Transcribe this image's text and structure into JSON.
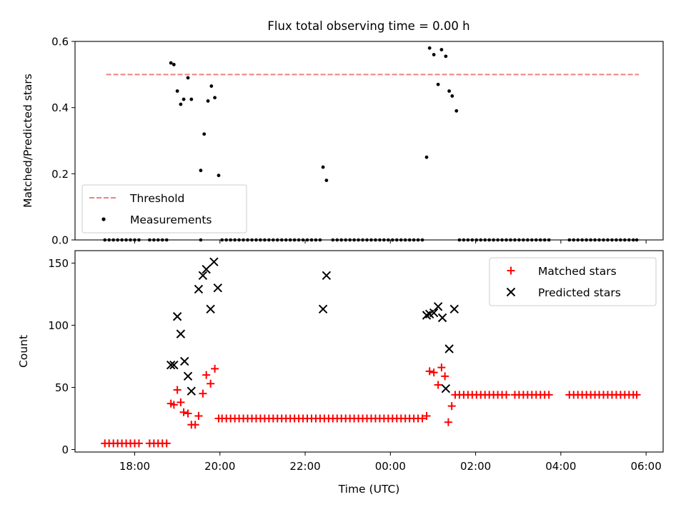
{
  "title": "Flux total observing time = 0.00 h",
  "chart_data": [
    {
      "type": "scatter",
      "ylabel": "Matched/Predicted stars",
      "ylim": [
        0,
        0.6
      ],
      "yticks": [
        "0.0",
        "0.2",
        "0.4",
        "0.6"
      ],
      "xlim": [
        16.6,
        30.4
      ],
      "x_unit": "hours since 00:00 UTC on first day",
      "legend": {
        "placement": "lower-left",
        "entries": [
          "Threshold",
          "Measurements"
        ]
      },
      "threshold": {
        "name": "Threshold",
        "color": "#f08080",
        "style": "dashed",
        "x": [
          17.33,
          29.83
        ],
        "y": 0.5
      },
      "series": [
        {
          "name": "Measurements",
          "color": "#000000",
          "marker": "dot",
          "points": [
            [
              18.85,
              0.535
            ],
            [
              18.92,
              0.53
            ],
            [
              19.0,
              0.45
            ],
            [
              19.08,
              0.41
            ],
            [
              19.15,
              0.425
            ],
            [
              19.25,
              0.49
            ],
            [
              19.33,
              0.425
            ],
            [
              19.55,
              0.21
            ],
            [
              19.63,
              0.32
            ],
            [
              19.72,
              0.42
            ],
            [
              19.8,
              0.465
            ],
            [
              19.88,
              0.43
            ],
            [
              19.97,
              0.195
            ],
            [
              22.42,
              0.22
            ],
            [
              22.5,
              0.18
            ],
            [
              24.85,
              0.25
            ],
            [
              24.92,
              0.58
            ],
            [
              25.02,
              0.56
            ],
            [
              25.12,
              0.47
            ],
            [
              25.2,
              0.575
            ],
            [
              25.3,
              0.555
            ],
            [
              25.38,
              0.45
            ],
            [
              25.45,
              0.435
            ],
            [
              25.55,
              0.39
            ]
          ]
        }
      ],
      "zero_points_x": [
        17.3,
        17.4,
        17.5,
        17.6,
        17.7,
        17.8,
        17.9,
        18.0,
        18.1,
        18.35,
        18.45,
        18.55,
        18.65,
        18.75,
        19.55,
        20.05,
        20.15,
        20.25,
        20.35,
        20.45,
        20.55,
        20.65,
        20.75,
        20.85,
        20.95,
        21.05,
        21.15,
        21.25,
        21.35,
        21.45,
        21.55,
        21.65,
        21.75,
        21.85,
        21.95,
        22.05,
        22.15,
        22.25,
        22.35,
        22.65,
        22.75,
        22.85,
        22.95,
        23.05,
        23.15,
        23.25,
        23.35,
        23.45,
        23.55,
        23.65,
        23.75,
        23.85,
        23.95,
        24.05,
        24.15,
        24.25,
        24.35,
        24.45,
        24.55,
        24.65,
        24.75,
        25.62,
        25.72,
        25.82,
        25.92,
        26.02,
        26.12,
        26.22,
        26.32,
        26.42,
        26.52,
        26.62,
        26.72,
        26.82,
        26.92,
        27.02,
        27.12,
        27.22,
        27.32,
        27.42,
        27.52,
        27.62,
        27.72,
        28.2,
        28.3,
        28.4,
        28.5,
        28.6,
        28.7,
        28.8,
        28.9,
        29.0,
        29.1,
        29.2,
        29.3,
        29.4,
        29.5,
        29.6,
        29.7,
        29.78
      ]
    },
    {
      "type": "scatter",
      "ylabel": "Count",
      "xlabel": "Time (UTC)",
      "ylim": [
        -2,
        160
      ],
      "yticks": [
        "0",
        "50",
        "100",
        "150"
      ],
      "xlim": [
        16.6,
        30.4
      ],
      "xticks": [
        {
          "value": 18,
          "label": "18:00"
        },
        {
          "value": 20,
          "label": "20:00"
        },
        {
          "value": 22,
          "label": "22:00"
        },
        {
          "value": 24,
          "label": "00:00"
        },
        {
          "value": 26,
          "label": "02:00"
        },
        {
          "value": 28,
          "label": "04:00"
        },
        {
          "value": 30,
          "label": "06:00"
        }
      ],
      "legend": {
        "placement": "upper-right",
        "entries": [
          "Matched stars",
          "Predicted stars"
        ]
      },
      "series": [
        {
          "name": "Matched stars",
          "color": "#ff0000",
          "marker": "plus",
          "points": [
            [
              17.3,
              5
            ],
            [
              17.4,
              5
            ],
            [
              17.5,
              5
            ],
            [
              17.6,
              5
            ],
            [
              17.7,
              5
            ],
            [
              17.8,
              5
            ],
            [
              17.9,
              5
            ],
            [
              18.0,
              5
            ],
            [
              18.1,
              5
            ],
            [
              18.35,
              5
            ],
            [
              18.45,
              5
            ],
            [
              18.55,
              5
            ],
            [
              18.65,
              5
            ],
            [
              18.75,
              5
            ],
            [
              18.85,
              37
            ],
            [
              18.92,
              36
            ],
            [
              19.0,
              48
            ],
            [
              19.08,
              38
            ],
            [
              19.15,
              30
            ],
            [
              19.25,
              29
            ],
            [
              19.33,
              20
            ],
            [
              19.42,
              20
            ],
            [
              19.5,
              27
            ],
            [
              19.6,
              45
            ],
            [
              19.68,
              60
            ],
            [
              19.78,
              53
            ],
            [
              19.88,
              65
            ],
            [
              19.97,
              25
            ],
            [
              20.05,
              25
            ],
            [
              20.15,
              25
            ],
            [
              20.25,
              25
            ],
            [
              20.35,
              25
            ],
            [
              20.45,
              25
            ],
            [
              20.55,
              25
            ],
            [
              20.65,
              25
            ],
            [
              20.75,
              25
            ],
            [
              20.85,
              25
            ],
            [
              20.95,
              25
            ],
            [
              21.05,
              25
            ],
            [
              21.15,
              25
            ],
            [
              21.25,
              25
            ],
            [
              21.35,
              25
            ],
            [
              21.45,
              25
            ],
            [
              21.55,
              25
            ],
            [
              21.65,
              25
            ],
            [
              21.75,
              25
            ],
            [
              21.85,
              25
            ],
            [
              21.95,
              25
            ],
            [
              22.05,
              25
            ],
            [
              22.15,
              25
            ],
            [
              22.25,
              25
            ],
            [
              22.35,
              25
            ],
            [
              22.45,
              25
            ],
            [
              22.55,
              25
            ],
            [
              22.65,
              25
            ],
            [
              22.75,
              25
            ],
            [
              22.85,
              25
            ],
            [
              22.95,
              25
            ],
            [
              23.05,
              25
            ],
            [
              23.15,
              25
            ],
            [
              23.25,
              25
            ],
            [
              23.35,
              25
            ],
            [
              23.45,
              25
            ],
            [
              23.55,
              25
            ],
            [
              23.65,
              25
            ],
            [
              23.75,
              25
            ],
            [
              23.85,
              25
            ],
            [
              23.95,
              25
            ],
            [
              24.05,
              25
            ],
            [
              24.15,
              25
            ],
            [
              24.25,
              25
            ],
            [
              24.35,
              25
            ],
            [
              24.45,
              25
            ],
            [
              24.55,
              25
            ],
            [
              24.65,
              25
            ],
            [
              24.75,
              25
            ],
            [
              24.85,
              27
            ],
            [
              24.92,
              63
            ],
            [
              25.02,
              62
            ],
            [
              25.12,
              52
            ],
            [
              25.2,
              66
            ],
            [
              25.28,
              59
            ],
            [
              25.36,
              22
            ],
            [
              25.44,
              35
            ],
            [
              25.52,
              44
            ],
            [
              25.62,
              44
            ],
            [
              25.72,
              44
            ],
            [
              25.82,
              44
            ],
            [
              25.92,
              44
            ],
            [
              26.02,
              44
            ],
            [
              26.12,
              44
            ],
            [
              26.22,
              44
            ],
            [
              26.32,
              44
            ],
            [
              26.42,
              44
            ],
            [
              26.52,
              44
            ],
            [
              26.62,
              44
            ],
            [
              26.72,
              44
            ],
            [
              26.92,
              44
            ],
            [
              27.02,
              44
            ],
            [
              27.12,
              44
            ],
            [
              27.22,
              44
            ],
            [
              27.32,
              44
            ],
            [
              27.42,
              44
            ],
            [
              27.52,
              44
            ],
            [
              27.62,
              44
            ],
            [
              27.72,
              44
            ],
            [
              28.2,
              44
            ],
            [
              28.3,
              44
            ],
            [
              28.4,
              44
            ],
            [
              28.5,
              44
            ],
            [
              28.6,
              44
            ],
            [
              28.7,
              44
            ],
            [
              28.8,
              44
            ],
            [
              28.9,
              44
            ],
            [
              29.0,
              44
            ],
            [
              29.1,
              44
            ],
            [
              29.2,
              44
            ],
            [
              29.3,
              44
            ],
            [
              29.4,
              44
            ],
            [
              29.5,
              44
            ],
            [
              29.6,
              44
            ],
            [
              29.7,
              44
            ],
            [
              29.78,
              44
            ]
          ]
        },
        {
          "name": "Predicted stars",
          "color": "#000000",
          "marker": "x",
          "points": [
            [
              18.85,
              68
            ],
            [
              18.92,
              68
            ],
            [
              19.0,
              107
            ],
            [
              19.08,
              93
            ],
            [
              19.17,
              71
            ],
            [
              19.25,
              59
            ],
            [
              19.33,
              47
            ],
            [
              19.5,
              129
            ],
            [
              19.6,
              140
            ],
            [
              19.68,
              145
            ],
            [
              19.78,
              113
            ],
            [
              19.86,
              151
            ],
            [
              19.95,
              130
            ],
            [
              22.42,
              113
            ],
            [
              22.5,
              140
            ],
            [
              24.85,
              108
            ],
            [
              24.92,
              109
            ],
            [
              25.02,
              110
            ],
            [
              25.12,
              115
            ],
            [
              25.22,
              106
            ],
            [
              25.3,
              49
            ],
            [
              25.38,
              81
            ],
            [
              25.5,
              113
            ]
          ]
        }
      ]
    }
  ]
}
